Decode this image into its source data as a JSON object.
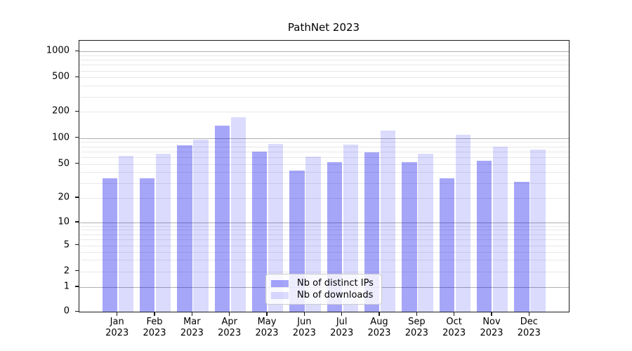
{
  "figure": {
    "title": "PathNet 2023"
  },
  "chart_data": {
    "type": "bar",
    "title": "PathNet 2023",
    "scale": "symlog",
    "grid": true,
    "legend_position": "lower center",
    "categories": [
      "Jan",
      "Feb",
      "Mar",
      "Apr",
      "May",
      "Jun",
      "Jul",
      "Aug",
      "Sep",
      "Oct",
      "Nov",
      "Dec"
    ],
    "x_year_label": "2023",
    "series": [
      {
        "name": "Nb of distinct IPs",
        "color": "rgba(0,0,238,0.35)",
        "values": [
          34,
          34,
          82,
          140,
          70,
          42,
          53,
          68,
          53,
          34,
          55,
          31
        ]
      },
      {
        "name": "Nb of downloads",
        "color": "rgba(0,0,238,0.14)",
        "values": [
          62,
          66,
          96,
          175,
          85,
          61,
          84,
          123,
          66,
          110,
          80,
          74
        ]
      }
    ],
    "y_ticks": [
      0,
      1,
      2,
      5,
      10,
      20,
      50,
      100,
      200,
      500,
      1000
    ],
    "ylim": [
      0,
      1000
    ]
  }
}
